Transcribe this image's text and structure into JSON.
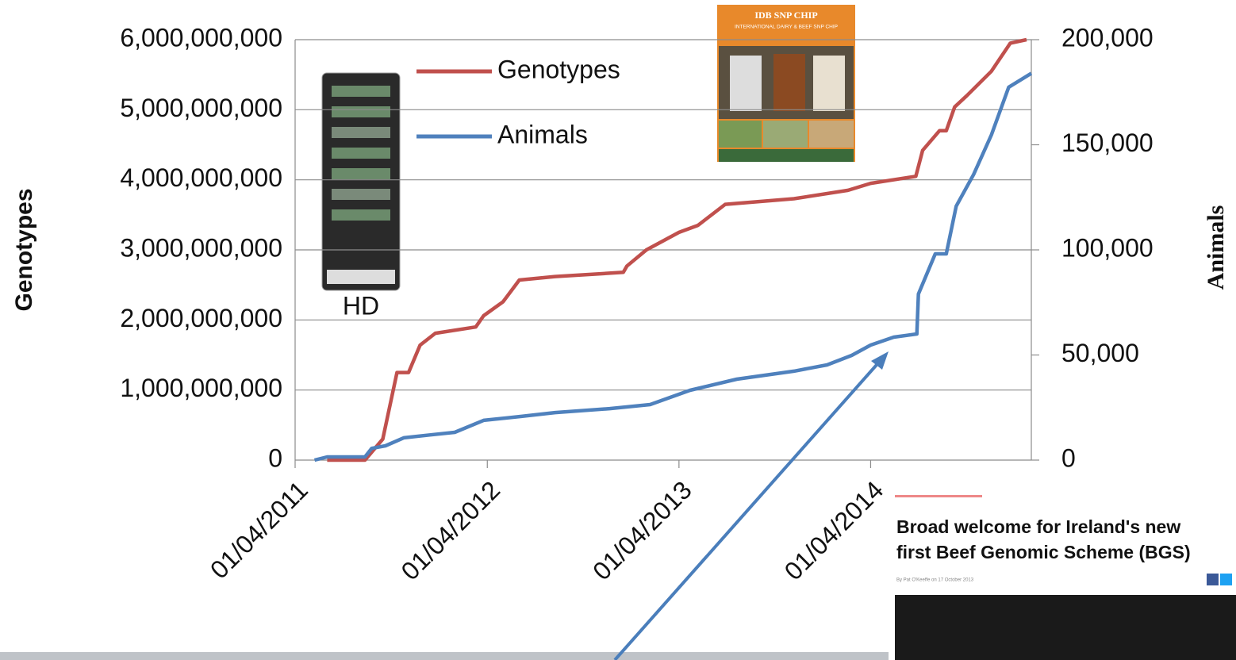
{
  "chart_data": {
    "type": "line",
    "y_label": "Genotypes",
    "y2_label": "Animals",
    "xlim": [
      "01/04/2011",
      "01/02/2015"
    ],
    "xticks": [
      "01/04/2011",
      "01/04/2012",
      "01/04/2013",
      "01/04/2014"
    ],
    "ylim": [
      0,
      6000000000
    ],
    "yticks": [
      0,
      {
        "value": 1000000000,
        "label": "1,000,000,000"
      },
      {
        "value": 2000000000,
        "label": "2,000,000,000"
      },
      {
        "value": 3000000000,
        "label": "3,000,000,000"
      },
      {
        "value": 4000000000,
        "label": "4,000,000,000"
      },
      {
        "value": 5000000000,
        "label": "5,000,000,000"
      },
      {
        "value": 6000000000,
        "label": "6,000,000,000"
      }
    ],
    "y2lim": [
      0,
      200000
    ],
    "y2ticks": [
      0,
      {
        "value": 50000,
        "label": "50,000"
      },
      {
        "value": 100000,
        "label": "100,000"
      },
      {
        "value": 150000,
        "label": "150,000"
      },
      {
        "value": 200000,
        "label": "200,000"
      }
    ],
    "grid": true,
    "legend": "top-center",
    "series": [
      {
        "name": "Genotypes",
        "color": "#c0504d",
        "x": [
          "01/06/2011",
          "12/08/2011",
          "15/09/2011",
          "12/10/2011",
          "03/11/2011",
          "25/11/2011",
          "24/12/2011",
          "10/03/2012",
          "25/03/2012",
          "01/05/2012",
          "01/06/2012",
          "08/08/2012",
          "16/12/2012",
          "23/12/2012",
          "29/01/2013",
          "01/04/2013",
          "07/05/2013",
          "28/06/2013",
          "06/11/2013",
          "17/02/2014",
          "01/04/2014",
          "26/06/2014",
          "09/07/2014",
          "10/08/2014",
          "23/08/2014",
          "08/09/2014",
          "01/10/2014",
          "17/11/2014",
          "23/12/2014",
          "23/01/2015"
        ],
        "values": [
          0,
          0,
          300000000,
          1250000000,
          1250000000,
          1640000000,
          1810000000,
          1900000000,
          2060000000,
          2260000000,
          2570000000,
          2620000000,
          2680000000,
          2770000000,
          3000000000,
          3250000000,
          3350000000,
          3650000000,
          3730000000,
          3850000000,
          3950000000,
          4050000000,
          4420000000,
          4700000000,
          4700000000,
          5040000000,
          5200000000,
          5550000000,
          5950000000,
          6000000000
        ]
      },
      {
        "name": "Animals",
        "color": "#4f81bd",
        "axis": "y2",
        "x": [
          "08/05/2011",
          "01/06/2011",
          "12/08/2011",
          "25/08/2011",
          "20/09/2011",
          "25/10/2011",
          "15/12/2011",
          "30/01/2012",
          "25/03/2012",
          "05/06/2012",
          "08/08/2012",
          "20/11/2012",
          "05/02/2013",
          "22/04/2013",
          "20/07/2013",
          "06/11/2013",
          "08/01/2014",
          "24/02/2014",
          "01/04/2014",
          "15/05/2014",
          "28/06/2014",
          "01/07/2014",
          "02/08/2014",
          "23/08/2014",
          "11/09/2014",
          "14/10/2014",
          "17/11/2014",
          "20/12/2014",
          "01/02/2015"
        ],
        "values": [
          0,
          1500,
          1500,
          5600,
          6800,
          10600,
          12000,
          13200,
          18900,
          20800,
          22600,
          24500,
          26400,
          33200,
          38500,
          42300,
          45300,
          49800,
          54700,
          58500,
          60000,
          79000,
          98100,
          98100,
          120800,
          135800,
          154700,
          177400,
          184000
        ]
      }
    ]
  },
  "insets": {
    "hd_label": "HD",
    "idb_title": "IDB SNP CHIP",
    "idb_subtitle": "INTERNATIONAL DAIRY & BEEF SNP CHIP"
  },
  "article": {
    "headline_1": "Broad welcome for Ireland's new",
    "headline_2": "first Beef Genomic Scheme (BGS)",
    "byline": "By Pat O'Keeffe on 17 October 2013"
  }
}
